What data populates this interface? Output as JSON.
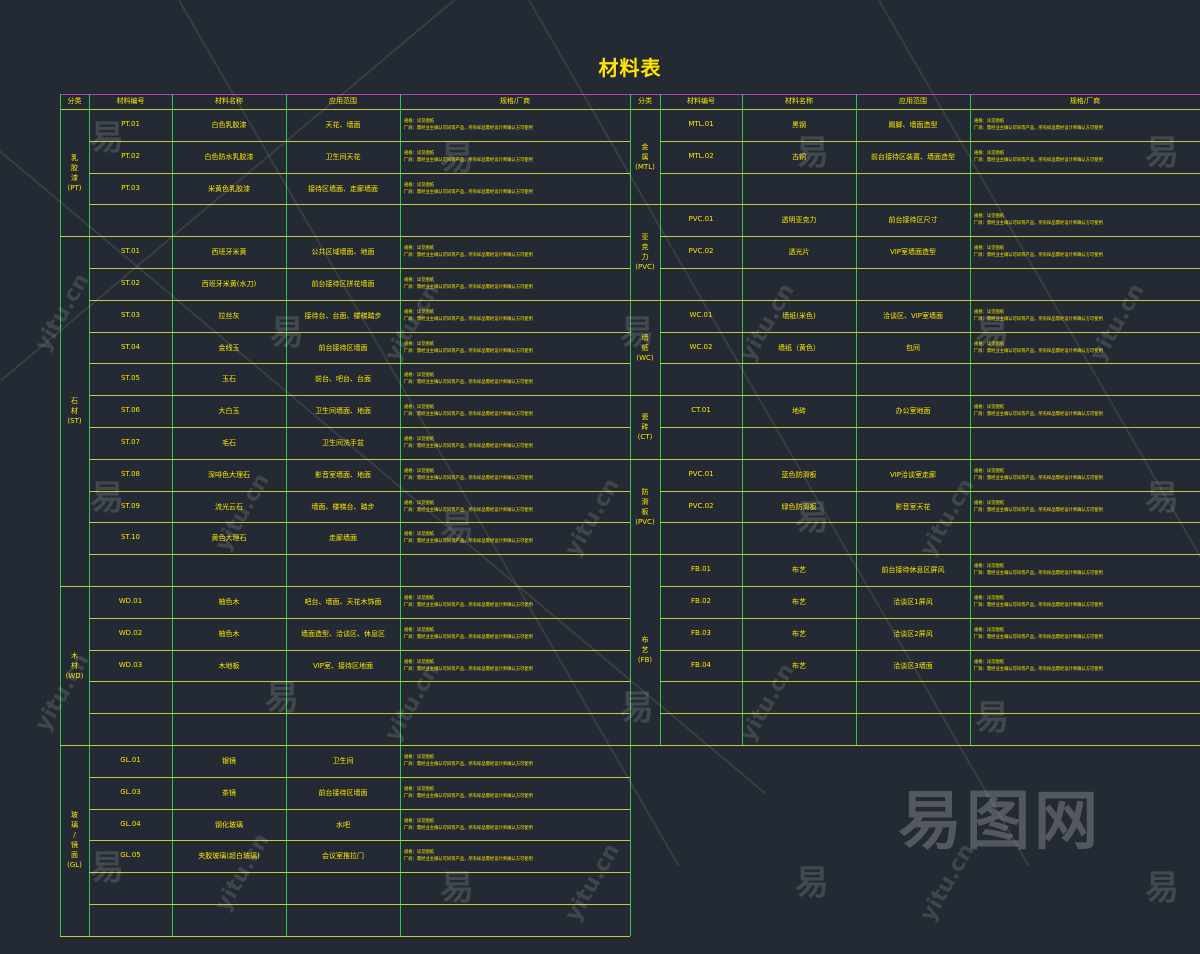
{
  "title": "材料表",
  "headers": {
    "category": "分类",
    "code": "材料编号",
    "name": "材料名称",
    "usage": "应用范围",
    "spec": "规格/厂商"
  },
  "spec_lines": {
    "line1": "规格：详见图纸",
    "line2": "厂商：需经业主确认可同等产品，所有样品需经设计师确认方可使用"
  },
  "left_categories": [
    {
      "label": "乳胶漆(PT)",
      "rows": [
        0,
        3
      ]
    },
    {
      "label": "石材(ST)",
      "rows": [
        4,
        14
      ]
    },
    {
      "label": "木材(WD)",
      "rows": [
        15,
        19
      ]
    },
    {
      "label": "玻璃/镜面(GL)",
      "rows": [
        20,
        25
      ]
    }
  ],
  "left_rows": [
    {
      "code": "PT.01",
      "name": "白色乳胶漆",
      "usage": "天花、墙面",
      "spec": true
    },
    {
      "code": "PT.02",
      "name": "白色防水乳胶漆",
      "usage": "卫生间天花",
      "spec": true
    },
    {
      "code": "PT.03",
      "name": "米黄色乳胶漆",
      "usage": "接待区墙面、走廊墙面",
      "spec": true
    },
    {
      "code": "",
      "name": "",
      "usage": "",
      "spec": false
    },
    {
      "code": "ST.01",
      "name": "西班牙米黄",
      "usage": "公共区域墙面、地面",
      "spec": true
    },
    {
      "code": "ST.02",
      "name": "西班牙米黄(水刀)",
      "usage": "前台接待区拼花墙面",
      "spec": true
    },
    {
      "code": "ST.03",
      "name": "拉丝灰",
      "usage": "接待台、台面、楼梯踏步",
      "spec": true
    },
    {
      "code": "ST.04",
      "name": "金线玉",
      "usage": "前台接待区墙面",
      "spec": true
    },
    {
      "code": "ST.05",
      "name": "玉石",
      "usage": "前台、吧台、台面",
      "spec": true
    },
    {
      "code": "ST.06",
      "name": "大白玉",
      "usage": "卫生间墙面、地面",
      "spec": true
    },
    {
      "code": "ST.07",
      "name": "毛石",
      "usage": "卫生间洗手盆",
      "spec": true
    },
    {
      "code": "ST.08",
      "name": "深啡色大理石",
      "usage": "影音室墙面、地面",
      "spec": true
    },
    {
      "code": "ST.09",
      "name": "流光云石",
      "usage": "墙面、楼梯台、踏步",
      "spec": true
    },
    {
      "code": "ST.10",
      "name": "黄色大理石",
      "usage": "走廊墙面",
      "spec": true
    },
    {
      "code": "",
      "name": "",
      "usage": "",
      "spec": false
    },
    {
      "code": "WD.01",
      "name": "柚色木",
      "usage": "吧台、墙面、天花木饰面",
      "spec": true
    },
    {
      "code": "WD.02",
      "name": "柚色木",
      "usage": "墙面造型、洽谈区、休息区",
      "spec": true
    },
    {
      "code": "WD.03",
      "name": "木地板",
      "usage": "VIP室、接待区地面",
      "spec": true
    },
    {
      "code": "",
      "name": "",
      "usage": "",
      "spec": false
    },
    {
      "code": "",
      "name": "",
      "usage": "",
      "spec": false
    },
    {
      "code": "GL.01",
      "name": "银镜",
      "usage": "卫生间",
      "spec": true
    },
    {
      "code": "GL.03",
      "name": "茶镜",
      "usage": "前台接待区墙面",
      "spec": true
    },
    {
      "code": "GL.04",
      "name": "钢化玻璃",
      "usage": "水吧",
      "spec": true
    },
    {
      "code": "GL.05",
      "name": "夹胶玻璃(超白玻璃)",
      "usage": "会议室推拉门",
      "spec": true
    },
    {
      "code": "",
      "name": "",
      "usage": "",
      "spec": false
    },
    {
      "code": "",
      "name": "",
      "usage": "",
      "spec": false
    }
  ],
  "right_categories": [
    {
      "label": "金属(MTL)",
      "rows": [
        0,
        2
      ]
    },
    {
      "label": "亚克力(PVC)",
      "rows": [
        3,
        5
      ]
    },
    {
      "label": "墙纸(WC)",
      "rows": [
        6,
        8
      ]
    },
    {
      "label": "瓷砖(CT)",
      "rows": [
        9,
        10
      ]
    },
    {
      "label": "防滑板(PVC)",
      "rows": [
        11,
        13
      ]
    },
    {
      "label": "布艺(FB)",
      "rows": [
        14,
        19
      ]
    }
  ],
  "right_rows": [
    {
      "code": "MTL.01",
      "name": "黑钢",
      "usage": "踢脚、墙面造型",
      "spec": true
    },
    {
      "code": "MTL.02",
      "name": "古铜",
      "usage": "前台接待区装置、墙面造型",
      "spec": true
    },
    {
      "code": "",
      "name": "",
      "usage": "",
      "spec": false
    },
    {
      "code": "PVC.01",
      "name": "透明亚克力",
      "usage": "前台接待区尺寸",
      "spec": true
    },
    {
      "code": "PVC.02",
      "name": "透光片",
      "usage": "VIP室墙面造型",
      "spec": true
    },
    {
      "code": "",
      "name": "",
      "usage": "",
      "spec": false
    },
    {
      "code": "WC.01",
      "name": "墙纸(米色)",
      "usage": "洽谈区、VIP室墙面",
      "spec": true
    },
    {
      "code": "WC.02",
      "name": "墙纸（黄色）",
      "usage": "包间",
      "spec": true
    },
    {
      "code": "",
      "name": "",
      "usage": "",
      "spec": false
    },
    {
      "code": "CT.01",
      "name": "地砖",
      "usage": "办公室地面",
      "spec": true
    },
    {
      "code": "",
      "name": "",
      "usage": "",
      "spec": false
    },
    {
      "code": "PVC.01",
      "name": "蓝色防滑板",
      "usage": "VIP洽谈室走廊",
      "spec": true
    },
    {
      "code": "PVC.02",
      "name": "绿色防滑板",
      "usage": "影音室天花",
      "spec": true
    },
    {
      "code": "",
      "name": "",
      "usage": "",
      "spec": false
    },
    {
      "code": "FB.01",
      "name": "布艺",
      "usage": "前台接待休息区屏风",
      "spec": true
    },
    {
      "code": "FB.02",
      "name": "布艺",
      "usage": "洽谈区1屏风",
      "spec": true
    },
    {
      "code": "FB.03",
      "name": "布艺",
      "usage": "洽谈区2屏风",
      "spec": true
    },
    {
      "code": "FB.04",
      "name": "布艺",
      "usage": "洽谈区3墙面",
      "spec": true
    },
    {
      "code": "",
      "name": "",
      "usage": "",
      "spec": false
    },
    {
      "code": "",
      "name": "",
      "usage": "",
      "spec": false
    }
  ],
  "watermark": {
    "glyph": "易",
    "url": "yitu.cn",
    "logo": "易图网"
  },
  "colors": {
    "background": "#232a33",
    "text": "#ffe600",
    "grid_horizontal": "#c8c83c",
    "grid_vertical": "#2fc44a",
    "divider": "#b53fb5"
  }
}
